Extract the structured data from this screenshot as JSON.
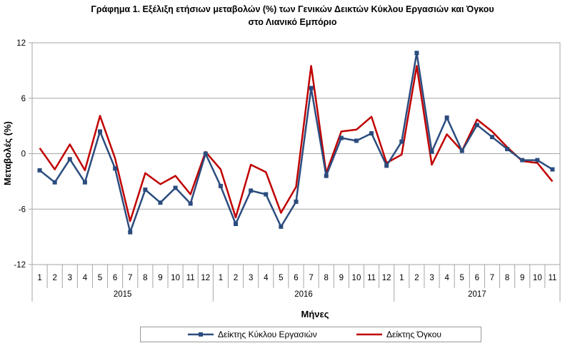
{
  "chart_data": {
    "type": "line",
    "title": "Γράφημα 1. Εξέλιξη ετήσιων μεταβολών (%) των Γενικών Δεικτών Κύκλου Εργασιών και Όγκου",
    "subtitle": "στο Λιανικό Εμπόριο",
    "xlabel": "Μήνες",
    "ylabel": "Μεταβολές  (%)",
    "ylim": [
      -12,
      12
    ],
    "yticks": [
      12,
      6,
      0,
      -6,
      -12
    ],
    "years": [
      {
        "label": "2015",
        "months": [
          "1",
          "2",
          "3",
          "4",
          "5",
          "6",
          "7",
          "8",
          "9",
          "10",
          "11",
          "12"
        ]
      },
      {
        "label": "2016",
        "months": [
          "1",
          "2",
          "3",
          "4",
          "5",
          "6",
          "7",
          "8",
          "9",
          "10",
          "11",
          "12"
        ]
      },
      {
        "label": "2017",
        "months": [
          "1",
          "2",
          "3",
          "4",
          "5",
          "6",
          "7",
          "8",
          "9",
          "10",
          "11"
        ]
      }
    ],
    "grid": "horizontal",
    "legend_position": "bottom",
    "series": [
      {
        "name": "Δείκτης Κύκλου Εργασιών",
        "color": "#2b4c7e",
        "marker": "square",
        "values": [
          -1.8,
          -3.1,
          -0.6,
          -3.1,
          2.4,
          -1.6,
          -8.5,
          -3.9,
          -5.3,
          -3.7,
          -5.4,
          0.0,
          -3.5,
          -7.6,
          -4.0,
          -4.4,
          -7.9,
          -5.2,
          7.1,
          -2.4,
          1.7,
          1.4,
          2.2,
          -1.3,
          1.3,
          10.9,
          0.2,
          3.9,
          0.3,
          3.1,
          1.8,
          0.5,
          -0.7,
          -0.7,
          -1.7
        ]
      },
      {
        "name": "Δείκτης Όγκου",
        "color": "#c00000",
        "marker": "none",
        "values": [
          0.6,
          -1.7,
          1.0,
          -1.8,
          4.1,
          -0.5,
          -7.3,
          -2.1,
          -3.3,
          -2.4,
          -4.4,
          0.2,
          -1.7,
          -6.9,
          -1.2,
          -2.0,
          -6.4,
          -3.6,
          9.5,
          -2.1,
          2.4,
          2.6,
          4.0,
          -1.0,
          -0.1,
          9.5,
          -1.2,
          2.1,
          0.3,
          3.7,
          2.4,
          0.7,
          -0.8,
          -1.0,
          -3.0
        ]
      }
    ]
  }
}
